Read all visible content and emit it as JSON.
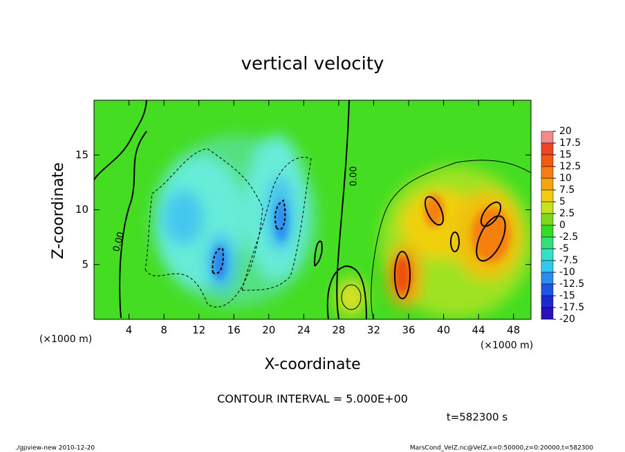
{
  "chart_data": {
    "type": "contour",
    "title": "vertical velocity",
    "x_label": "X-coordinate",
    "y_label": "Z-coordinate",
    "x_unit": "(×1000 m)",
    "y_unit": "(×1000 m)",
    "xlim": [
      0,
      50
    ],
    "ylim": [
      0,
      20
    ],
    "xticks": [
      4,
      8,
      12,
      16,
      20,
      24,
      28,
      32,
      36,
      40,
      44,
      48
    ],
    "yticks": [
      5,
      10,
      15
    ],
    "contour_labels": [
      "0.00",
      "0.00"
    ],
    "contour_interval_text": "CONTOUR INTERVAL = 5.000E+00",
    "time_text": "t=582300 s",
    "colorbar": {
      "levels": [
        20,
        17.5,
        15,
        12.5,
        10,
        7.5,
        5,
        2.5,
        0,
        -2.5,
        -5,
        -7.5,
        -10,
        -12.5,
        -15,
        -17.5,
        -20
      ],
      "colors": [
        "#f28a8a",
        "#f0442a",
        "#f55a12",
        "#f57f10",
        "#f5a512",
        "#f2cc10",
        "#c8e21a",
        "#7ed81e",
        "#33dd22",
        "#33e07a",
        "#33e0c8",
        "#33c8ee",
        "#2a8cee",
        "#1f55e6",
        "#1a2ad2",
        "#2a10b8"
      ]
    },
    "footer_left": "./gpview-new   2010-12-20",
    "footer_right": "MarsCond_VelZ.nc@VelZ,x=0:50000,z=0:20000,t=582300"
  }
}
